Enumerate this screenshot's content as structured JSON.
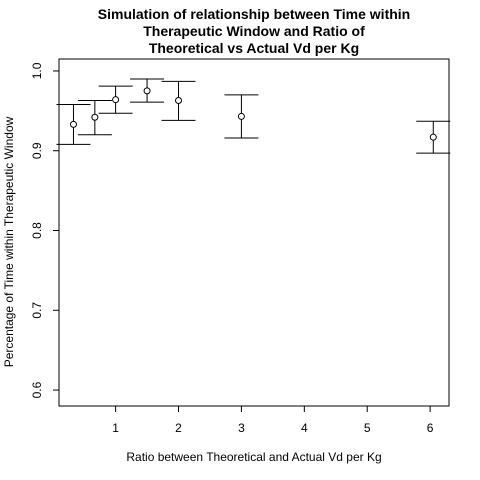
{
  "chart_data": {
    "type": "scatter",
    "title_lines": [
      "Simulation of relationship between Time within",
      "Therapeutic Window and Ratio of",
      "Theoretical vs Actual Vd per Kg"
    ],
    "xlabel": "Ratio between Theoretical and Actual Vd per Kg",
    "ylabel": "Percentage of Time within Therapeutic Window",
    "xlim": [
      0.1,
      6.3
    ],
    "ylim": [
      0.58,
      1.015
    ],
    "x_ticks": [
      1,
      2,
      3,
      4,
      5,
      6
    ],
    "y_ticks": [
      0.6,
      0.7,
      0.8,
      0.9,
      1.0
    ],
    "y_tick_labels": [
      "0.6",
      "0.7",
      "0.8",
      "0.9",
      "1.0"
    ],
    "grid": false,
    "error_bars": true,
    "points": [
      {
        "x": 0.33,
        "y": 0.933,
        "lo": 0.908,
        "hi": 0.958
      },
      {
        "x": 0.67,
        "y": 0.942,
        "lo": 0.92,
        "hi": 0.963
      },
      {
        "x": 1.0,
        "y": 0.964,
        "lo": 0.947,
        "hi": 0.981
      },
      {
        "x": 1.5,
        "y": 0.975,
        "lo": 0.961,
        "hi": 0.99
      },
      {
        "x": 2.0,
        "y": 0.963,
        "lo": 0.938,
        "hi": 0.987
      },
      {
        "x": 3.0,
        "y": 0.943,
        "lo": 0.916,
        "hi": 0.97
      },
      {
        "x": 6.05,
        "y": 0.917,
        "lo": 0.897,
        "hi": 0.937
      }
    ]
  }
}
